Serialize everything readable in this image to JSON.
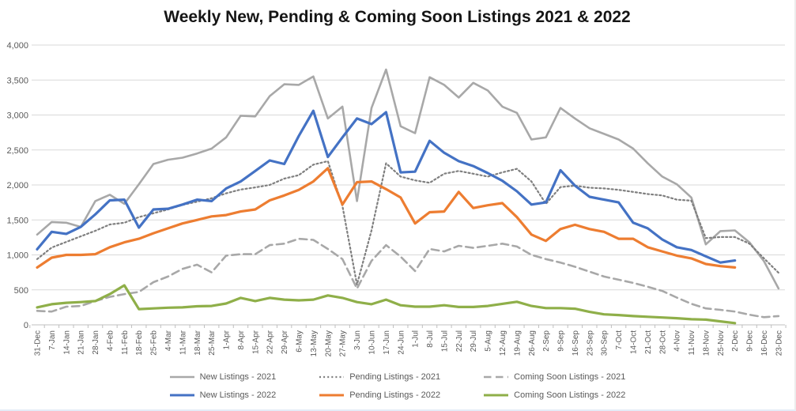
{
  "chart_data": {
    "type": "line",
    "title": "Weekly New, Pending & Coming Soon Listings 2021 & 2022",
    "grid": true,
    "legend_position": "bottom",
    "ylim": [
      0,
      4000
    ],
    "ytick_step": 500,
    "ytick_labels": [
      "0",
      "500",
      "1,000",
      "1,500",
      "2,000",
      "2,500",
      "3,000",
      "3,500",
      "4,000"
    ],
    "x": [
      "31-Dec",
      "7-Jan",
      "14-Jan",
      "21-Jan",
      "28-Jan",
      "4-Feb",
      "11-Feb",
      "18-Feb",
      "25-Feb",
      "4-Mar",
      "11-Mar",
      "18-Mar",
      "25-Mar",
      "1-Apr",
      "8-Apr",
      "15-Apr",
      "22-Apr",
      "29-Apr",
      "6-May",
      "13-May",
      "20-May",
      "27-May",
      "3-Jun",
      "10-Jun",
      "17-Jun",
      "24-Jun",
      "1-Jul",
      "8-Jul",
      "15-Jul",
      "22-Jul",
      "29-Jul",
      "5-Aug",
      "12-Aug",
      "19-Aug",
      "26-Aug",
      "2-Sep",
      "9-Sep",
      "16-Sep",
      "23-Sep",
      "30-Sep",
      "7-Oct",
      "14-Oct",
      "21-Oct",
      "28-Oct",
      "4-Nov",
      "11-Nov",
      "18-Nov",
      "25-Nov",
      "2-Dec",
      "9-Dec",
      "16-Dec",
      "23-Dec"
    ],
    "series": [
      {
        "name": "New Listings - 2021",
        "color": "#A8A8A8",
        "dash": "solid",
        "width": 2.6,
        "values": [
          1290,
          1470,
          1460,
          1400,
          1770,
          1860,
          1730,
          2010,
          2300,
          2360,
          2390,
          2450,
          2520,
          2680,
          2990,
          2980,
          3270,
          3440,
          3430,
          3550,
          2950,
          3120,
          1770,
          3100,
          3650,
          2840,
          2740,
          3540,
          3430,
          3250,
          3460,
          3350,
          3120,
          3030,
          2650,
          2680,
          3100,
          2950,
          2810,
          2730,
          2650,
          2520,
          2310,
          2120,
          2010,
          1820,
          1150,
          1340,
          1350,
          1180,
          910,
          520
        ]
      },
      {
        "name": "Pending Listings - 2021",
        "color": "#7F7F7F",
        "dash": "dotted",
        "width": 2.2,
        "values": [
          940,
          1105,
          1185,
          1265,
          1345,
          1435,
          1460,
          1540,
          1595,
          1650,
          1715,
          1760,
          1810,
          1880,
          1935,
          1965,
          2000,
          2090,
          2140,
          2290,
          2340,
          1700,
          575,
          1350,
          2310,
          2120,
          2065,
          2030,
          2160,
          2200,
          2160,
          2120,
          2180,
          2230,
          2050,
          1730,
          1970,
          1990,
          1960,
          1950,
          1930,
          1900,
          1870,
          1850,
          1790,
          1775,
          1240,
          1255,
          1255,
          1160,
          950,
          745
        ]
      },
      {
        "name": "Coming Soon Listings - 2021",
        "color": "#A8A8A8",
        "dash": "dashed",
        "width": 2.6,
        "values": [
          200,
          190,
          260,
          270,
          340,
          400,
          440,
          470,
          610,
          690,
          800,
          860,
          750,
          990,
          1010,
          1010,
          1140,
          1160,
          1230,
          1215,
          1085,
          940,
          520,
          915,
          1140,
          975,
          770,
          1085,
          1050,
          1130,
          1100,
          1130,
          1160,
          1120,
          1000,
          940,
          890,
          830,
          760,
          690,
          645,
          600,
          545,
          485,
          390,
          300,
          235,
          215,
          190,
          145,
          110,
          125
        ]
      },
      {
        "name": "New Listings - 2022",
        "color": "#4472C4",
        "dash": "solid",
        "width": 3.2,
        "values": [
          1080,
          1330,
          1300,
          1400,
          1580,
          1780,
          1790,
          1390,
          1650,
          1660,
          1720,
          1790,
          1770,
          1950,
          2050,
          2200,
          2350,
          2300,
          2700,
          3060,
          2400,
          2680,
          2950,
          2870,
          3040,
          2180,
          2190,
          2630,
          2460,
          2340,
          2270,
          2170,
          2060,
          1910,
          1720,
          1750,
          2210,
          1990,
          1830,
          1790,
          1750,
          1460,
          1380,
          1220,
          1110,
          1070,
          980,
          890,
          920,
          null,
          null,
          null
        ]
      },
      {
        "name": "Pending Listings - 2022",
        "color": "#ED7D31",
        "dash": "solid",
        "width": 3.2,
        "values": [
          820,
          960,
          1000,
          1000,
          1010,
          1110,
          1180,
          1230,
          1310,
          1380,
          1450,
          1500,
          1550,
          1570,
          1620,
          1650,
          1780,
          1850,
          1930,
          2050,
          2240,
          1720,
          2040,
          2050,
          1940,
          1820,
          1450,
          1610,
          1620,
          1900,
          1670,
          1710,
          1740,
          1540,
          1290,
          1200,
          1370,
          1430,
          1370,
          1330,
          1230,
          1230,
          1110,
          1050,
          990,
          950,
          870,
          840,
          820,
          null,
          null,
          null
        ]
      },
      {
        "name": "Coming Soon Listings - 2022",
        "color": "#8FAF49",
        "dash": "solid",
        "width": 3.2,
        "values": [
          250,
          295,
          315,
          325,
          340,
          440,
          565,
          225,
          235,
          245,
          250,
          265,
          270,
          305,
          385,
          340,
          385,
          360,
          350,
          360,
          420,
          385,
          325,
          295,
          360,
          280,
          260,
          260,
          280,
          255,
          255,
          270,
          300,
          330,
          270,
          240,
          240,
          230,
          185,
          150,
          140,
          125,
          115,
          105,
          95,
          80,
          75,
          50,
          25,
          null,
          null,
          null
        ]
      }
    ],
    "legend_rows": [
      [
        0,
        1,
        2
      ],
      [
        3,
        4,
        5
      ]
    ],
    "colors": {
      "gridline": "#D9D9D9",
      "axis_line": "#BFBFBF",
      "tick_label": "#595959",
      "title_text": "#151515"
    }
  }
}
